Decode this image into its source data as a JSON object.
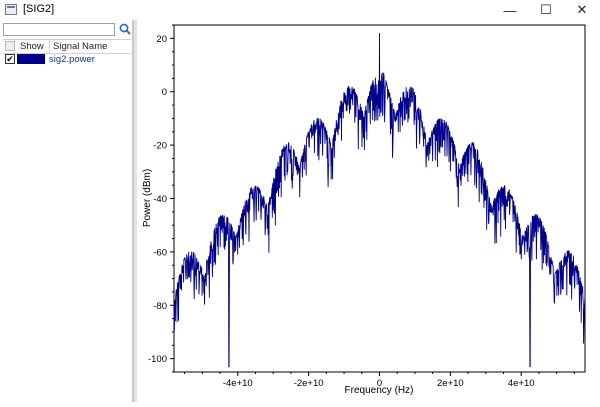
{
  "window": {
    "title": "[SIG2]",
    "minimize": "—",
    "maximize": "☐",
    "close": "✕"
  },
  "sidebar": {
    "search": {
      "value": "",
      "placeholder": ""
    },
    "search_icon": "search-icon",
    "columns": [
      "Show",
      "Signal Name"
    ],
    "signals": [
      {
        "name": "sig2.power",
        "checked": true,
        "color": "#00008b"
      }
    ]
  },
  "chart_data": {
    "type": "line",
    "xlabel": "Frequency (Hz)",
    "ylabel": "Power (dBm)",
    "xlim": [
      -58000000000,
      58000000000
    ],
    "ylim": [
      -105,
      25
    ],
    "x_ticks": [
      -40000000000,
      -20000000000,
      0,
      20000000000,
      40000000000
    ],
    "x_tick_labels": [
      "-4e+10",
      "-2e+10",
      "0",
      "2e+10",
      "4e+10"
    ],
    "y_ticks": [
      20,
      0,
      -20,
      -40,
      -60,
      -80,
      -100
    ],
    "y_tick_labels": [
      "20",
      "0",
      "-20",
      "-40",
      "-60",
      "-80",
      "-100"
    ],
    "grid": false,
    "series": [
      {
        "color": "#00008b",
        "envelope_x": [
          -58000000000,
          -54000000000,
          -50000000000,
          -46000000000,
          -42000000000,
          -38000000000,
          -34000000000,
          -30000000000,
          -26000000000,
          -22000000000,
          -18000000000,
          -14000000000,
          -10000000000,
          -6000000000,
          -2000000000,
          0,
          2000000000,
          6000000000,
          10000000000,
          14000000000,
          18000000000,
          22000000000,
          26000000000,
          30000000000,
          34000000000,
          38000000000,
          42000000000,
          46000000000,
          50000000000,
          54000000000,
          58000000000
        ],
        "envelope_y": [
          -65,
          -60,
          -55,
          -48,
          -42,
          -38,
          -33,
          -26,
          -18,
          -13,
          -10,
          -6,
          1,
          5,
          7,
          8,
          7,
          5,
          1,
          -6,
          -10,
          -13,
          -18,
          -26,
          -33,
          -38,
          -42,
          -48,
          -55,
          -60,
          -65
        ],
        "peak": {
          "x": 0,
          "y": 22
        },
        "nulls": [
          {
            "x": -42500000000,
            "y": -103
          },
          {
            "x": 42500000000,
            "y": -103
          }
        ]
      }
    ]
  }
}
